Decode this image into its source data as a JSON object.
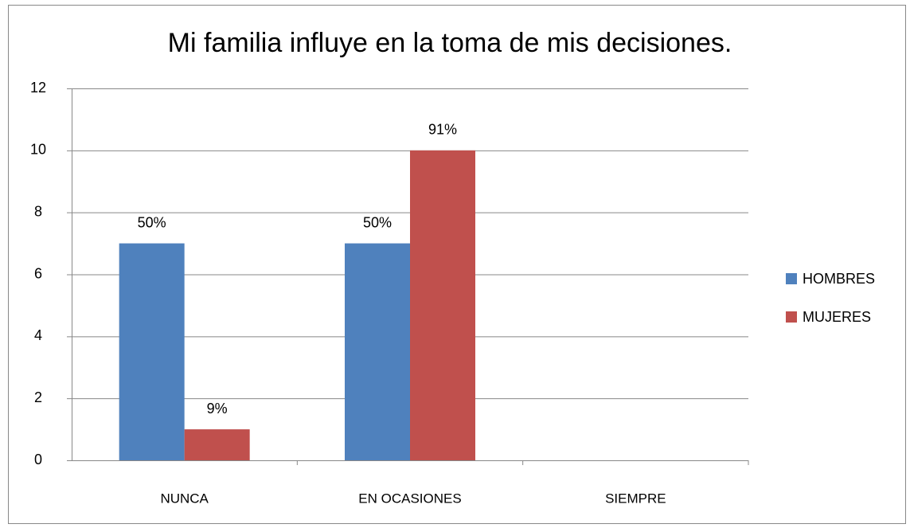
{
  "chart_data": {
    "type": "bar",
    "title": "Mi familia  influye en la toma de mis decisiones.",
    "categories": [
      "NUNCA",
      "EN OCASIONES",
      "SIEMPRE"
    ],
    "series": [
      {
        "name": "HOMBRES",
        "color": "#4f81bd",
        "values": [
          7,
          7,
          null
        ],
        "value_labels": [
          "50%",
          "50%",
          null
        ]
      },
      {
        "name": "MUJERES",
        "color": "#c0504d",
        "values": [
          1,
          10,
          null
        ],
        "value_labels": [
          "9%",
          "91%",
          null
        ]
      }
    ],
    "ylim": [
      0,
      12
    ],
    "yticks": [
      0,
      2,
      4,
      6,
      8,
      10,
      12
    ],
    "grid": true,
    "legend": "right"
  }
}
